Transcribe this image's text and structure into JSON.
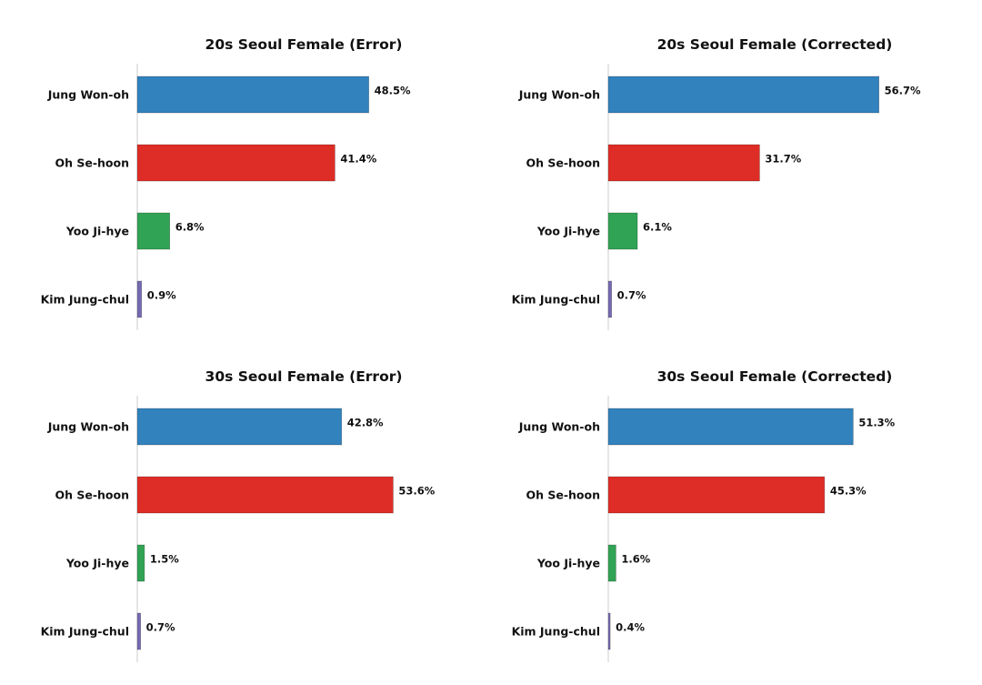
{
  "colors": {
    "Jung Won-oh": "#3182bd",
    "Oh Se-hoon": "#de2d26",
    "Yoo Ji-hye": "#31a354",
    "Kim Jung-chul": "#756bb1"
  },
  "chart_data": [
    {
      "type": "bar",
      "orientation": "horizontal",
      "title": "20s Seoul Female (Error)",
      "categories": [
        "Jung Won-oh",
        "Oh Se-hoon",
        "Yoo Ji-hye",
        "Kim Jung-chul"
      ],
      "values": [
        48.5,
        41.4,
        6.8,
        0.9
      ],
      "value_labels": [
        "48.5%",
        "41.4%",
        "6.8%",
        "0.9%"
      ],
      "xlim": [
        0,
        60
      ],
      "grid": false
    },
    {
      "type": "bar",
      "orientation": "horizontal",
      "title": "20s Seoul Female (Corrected)",
      "categories": [
        "Jung Won-oh",
        "Oh Se-hoon",
        "Yoo Ji-hye",
        "Kim Jung-chul"
      ],
      "values": [
        56.7,
        31.7,
        6.1,
        0.7
      ],
      "value_labels": [
        "56.7%",
        "31.7%",
        "6.1%",
        "0.7%"
      ],
      "xlim": [
        0,
        60
      ],
      "grid": false
    },
    {
      "type": "bar",
      "orientation": "horizontal",
      "title": "30s Seoul Female (Error)",
      "categories": [
        "Jung Won-oh",
        "Oh Se-hoon",
        "Yoo Ji-hye",
        "Kim Jung-chul"
      ],
      "values": [
        42.8,
        53.6,
        1.5,
        0.7
      ],
      "value_labels": [
        "42.8%",
        "53.6%",
        "1.5%",
        "0.7%"
      ],
      "xlim": [
        0,
        60
      ],
      "grid": false
    },
    {
      "type": "bar",
      "orientation": "horizontal",
      "title": "30s Seoul Female (Corrected)",
      "categories": [
        "Jung Won-oh",
        "Oh Se-hoon",
        "Yoo Ji-hye",
        "Kim Jung-chul"
      ],
      "values": [
        51.3,
        45.3,
        1.6,
        0.4
      ],
      "value_labels": [
        "51.3%",
        "45.3%",
        "1.6%",
        "0.4%"
      ],
      "xlim": [
        0,
        60
      ],
      "grid": false
    }
  ]
}
